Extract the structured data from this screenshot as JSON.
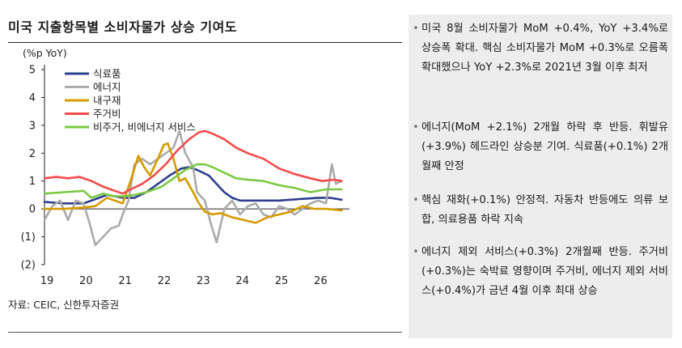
{
  "chart_data": {
    "type": "line",
    "title": "미국 지출항목별 소비자물가 상승 기여도",
    "ylabel": "(%p YoY)",
    "ylim": [
      -2,
      5
    ],
    "yticks": [
      5,
      4,
      3,
      2,
      1,
      0,
      -1,
      -2
    ],
    "ytick_labels": [
      "5",
      "4",
      "3",
      "2",
      "1",
      "0",
      "(1)",
      "(2)"
    ],
    "xlim": [
      2019,
      2026.8
    ],
    "xticks": [
      2019,
      2020,
      2021,
      2022,
      2023,
      2024,
      2025,
      2026
    ],
    "xtick_labels": [
      "19",
      "20",
      "21",
      "22",
      "23",
      "24",
      "25",
      "26"
    ],
    "legend": "top-left",
    "series": [
      {
        "name": "식료품",
        "color": "#2e3f8f",
        "points": [
          [
            2019,
            0.25
          ],
          [
            2019.5,
            0.2
          ],
          [
            2020,
            0.2
          ],
          [
            2020.3,
            0.35
          ],
          [
            2020.6,
            0.5
          ],
          [
            2021,
            0.4
          ],
          [
            2021.3,
            0.4
          ],
          [
            2021.6,
            0.6
          ],
          [
            2021.9,
            0.9
          ],
          [
            2022.2,
            1.2
          ],
          [
            2022.5,
            1.45
          ],
          [
            2022.7,
            1.5
          ],
          [
            2022.9,
            1.4
          ],
          [
            2023.2,
            1.2
          ],
          [
            2023.4,
            0.9
          ],
          [
            2023.6,
            0.6
          ],
          [
            2023.8,
            0.4
          ],
          [
            2024,
            0.3
          ],
          [
            2024.5,
            0.3
          ],
          [
            2025,
            0.3
          ],
          [
            2025.5,
            0.35
          ],
          [
            2026,
            0.4
          ],
          [
            2026.3,
            0.4
          ],
          [
            2026.6,
            0.33
          ]
        ]
      },
      {
        "name": "에너지",
        "color": "#aaaaaa",
        "points": [
          [
            2019,
            -0.4
          ],
          [
            2019.2,
            0.1
          ],
          [
            2019.4,
            0.3
          ],
          [
            2019.6,
            -0.4
          ],
          [
            2019.8,
            0.3
          ],
          [
            2020,
            0.2
          ],
          [
            2020.15,
            -0.5
          ],
          [
            2020.3,
            -1.3
          ],
          [
            2020.5,
            -1.0
          ],
          [
            2020.7,
            -0.7
          ],
          [
            2020.9,
            -0.6
          ],
          [
            2021,
            -0.2
          ],
          [
            2021.15,
            0.3
          ],
          [
            2021.3,
            1.6
          ],
          [
            2021.5,
            1.8
          ],
          [
            2021.7,
            1.6
          ],
          [
            2021.9,
            1.8
          ],
          [
            2022.1,
            2.0
          ],
          [
            2022.3,
            2.2
          ],
          [
            2022.45,
            2.8
          ],
          [
            2022.6,
            2.0
          ],
          [
            2022.8,
            1.5
          ],
          [
            2022.9,
            0.6
          ],
          [
            2023.1,
            0.3
          ],
          [
            2023.25,
            -0.5
          ],
          [
            2023.4,
            -1.2
          ],
          [
            2023.6,
            0.0
          ],
          [
            2023.8,
            0.3
          ],
          [
            2024,
            -0.2
          ],
          [
            2024.2,
            0.1
          ],
          [
            2024.4,
            0.2
          ],
          [
            2024.6,
            -0.2
          ],
          [
            2024.8,
            -0.3
          ],
          [
            2025,
            0.1
          ],
          [
            2025.2,
            0.0
          ],
          [
            2025.4,
            -0.2
          ],
          [
            2025.6,
            0.0
          ],
          [
            2025.8,
            0.2
          ],
          [
            2026,
            0.3
          ],
          [
            2026.2,
            0.2
          ],
          [
            2026.35,
            1.6
          ],
          [
            2026.45,
            0.9
          ],
          [
            2026.6,
            1.0
          ]
        ]
      },
      {
        "name": "내구재",
        "color": "#d69a00",
        "points": [
          [
            2019,
            0.0
          ],
          [
            2019.5,
            0.0
          ],
          [
            2020,
            0.05
          ],
          [
            2020.3,
            0.1
          ],
          [
            2020.6,
            0.4
          ],
          [
            2021,
            0.2
          ],
          [
            2021.2,
            1.0
          ],
          [
            2021.4,
            1.9
          ],
          [
            2021.55,
            1.5
          ],
          [
            2021.7,
            1.2
          ],
          [
            2021.9,
            1.8
          ],
          [
            2022.05,
            2.3
          ],
          [
            2022.15,
            2.35
          ],
          [
            2022.3,
            1.8
          ],
          [
            2022.45,
            1.0
          ],
          [
            2022.6,
            1.1
          ],
          [
            2022.8,
            0.6
          ],
          [
            2022.95,
            0.2
          ],
          [
            2023.1,
            -0.1
          ],
          [
            2023.3,
            -0.2
          ],
          [
            2023.5,
            -0.15
          ],
          [
            2023.8,
            -0.3
          ],
          [
            2024.1,
            -0.4
          ],
          [
            2024.4,
            -0.5
          ],
          [
            2024.7,
            -0.3
          ],
          [
            2025,
            -0.2
          ],
          [
            2025.3,
            -0.1
          ],
          [
            2025.6,
            0.1
          ],
          [
            2025.9,
            0.0
          ],
          [
            2026.2,
            0.0
          ],
          [
            2026.6,
            -0.05
          ]
        ]
      },
      {
        "name": "주거비",
        "color": "#f24b4b",
        "points": [
          [
            2019,
            1.1
          ],
          [
            2019.3,
            1.15
          ],
          [
            2019.6,
            1.1
          ],
          [
            2019.9,
            1.15
          ],
          [
            2020.2,
            1.0
          ],
          [
            2020.5,
            0.8
          ],
          [
            2020.8,
            0.65
          ],
          [
            2021,
            0.55
          ],
          [
            2021.2,
            0.7
          ],
          [
            2021.5,
            0.9
          ],
          [
            2021.8,
            1.2
          ],
          [
            2022.1,
            1.6
          ],
          [
            2022.4,
            2.1
          ],
          [
            2022.7,
            2.5
          ],
          [
            2022.95,
            2.75
          ],
          [
            2023.1,
            2.8
          ],
          [
            2023.3,
            2.7
          ],
          [
            2023.6,
            2.5
          ],
          [
            2023.9,
            2.2
          ],
          [
            2024.2,
            2.0
          ],
          [
            2024.6,
            1.8
          ],
          [
            2025,
            1.45
          ],
          [
            2025.4,
            1.25
          ],
          [
            2025.8,
            1.1
          ],
          [
            2026.1,
            1.0
          ],
          [
            2026.4,
            1.05
          ],
          [
            2026.6,
            1.0
          ]
        ]
      },
      {
        "name": "비주거, 비에너지 서비스",
        "color": "#7ac943",
        "points": [
          [
            2019,
            0.55
          ],
          [
            2019.5,
            0.6
          ],
          [
            2020,
            0.65
          ],
          [
            2020.2,
            0.4
          ],
          [
            2020.5,
            0.55
          ],
          [
            2020.8,
            0.45
          ],
          [
            2021,
            0.45
          ],
          [
            2021.3,
            0.5
          ],
          [
            2021.6,
            0.6
          ],
          [
            2022,
            0.8
          ],
          [
            2022.3,
            1.1
          ],
          [
            2022.6,
            1.4
          ],
          [
            2022.9,
            1.6
          ],
          [
            2023.1,
            1.6
          ],
          [
            2023.3,
            1.5
          ],
          [
            2023.6,
            1.3
          ],
          [
            2023.9,
            1.1
          ],
          [
            2024.2,
            1.05
          ],
          [
            2024.6,
            1.0
          ],
          [
            2025,
            0.85
          ],
          [
            2025.4,
            0.75
          ],
          [
            2025.8,
            0.6
          ],
          [
            2026.2,
            0.7
          ],
          [
            2026.6,
            0.7
          ]
        ]
      }
    ]
  },
  "source": "자료: CEIC, 신한투자증권",
  "bullets": [
    "미국 8월 소비자물가 MoM +0.4%, YoY +3.4%로 상승폭 확대. 핵심 소비자물가 MoM +0.3%로 오름폭 확대했으나 YoY +2.3%로 2021년 3월 이후 최저",
    "에너지(MoM +2.1%) 2개월 하락 후 반등. 휘발유(+3.9%) 헤드라인 상승분 기여. 식료품(+0.1%) 2개월째 안정",
    "핵심 재화(+0.1%) 안정적. 자동차 반등에도 의류 보합, 의료용품 하락 지속",
    "에너지 제외 서비스(+0.3%) 2개월째 반등. 주거비(+0.3%)는 숙박료 영향이며 주거비, 에너지 제외 서비스(+0.4%)가 금년 4월 이후 최대 상승"
  ]
}
